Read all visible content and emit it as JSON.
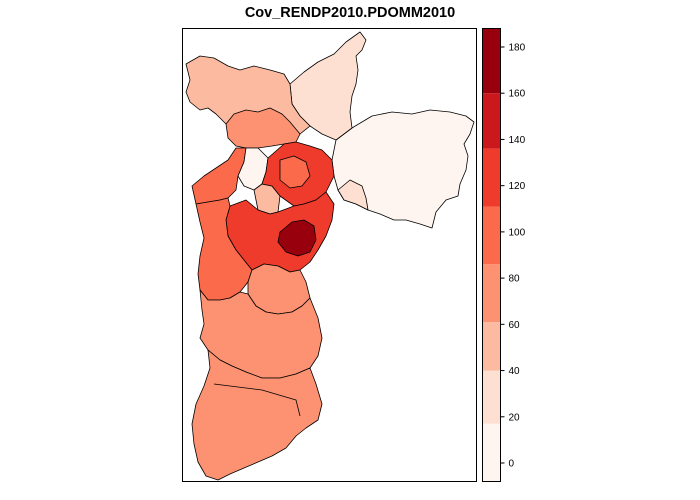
{
  "chart_data": {
    "type": "choropleth",
    "title": "Cov_RENDP2010.PDOMM2010",
    "legend": {
      "placement": "right",
      "breaks": [
        0,
        20,
        40,
        60,
        80,
        100,
        120,
        140,
        160,
        180
      ],
      "range": [
        -8,
        188
      ],
      "tick_labels": [
        "0",
        "20",
        "40",
        "60",
        "80",
        "100",
        "120",
        "140",
        "160",
        "180"
      ],
      "bins": [
        {
          "from": -8,
          "to": 17,
          "color": "#fff5f0"
        },
        {
          "from": 17,
          "to": 40,
          "color": "#fee0d2"
        },
        {
          "from": 40,
          "to": 61,
          "color": "#fcbba1"
        },
        {
          "from": 61,
          "to": 86,
          "color": "#fc9272"
        },
        {
          "from": 86,
          "to": 111,
          "color": "#fb6a4a"
        },
        {
          "from": 111,
          "to": 136,
          "color": "#ef3b2c"
        },
        {
          "from": 136,
          "to": 160,
          "color": "#cb181d"
        },
        {
          "from": 160,
          "to": 188,
          "color": "#99000d"
        }
      ]
    },
    "regions_value_class": {
      "far_south": 70,
      "south_large": 70,
      "south_west": 65,
      "south_east_strip": 75,
      "west_cluster": 100,
      "central_hotspot": 175,
      "central_ring": 125,
      "center_light": 35,
      "north_west": 50,
      "north": 30,
      "north_east": 10,
      "east": 5
    }
  }
}
